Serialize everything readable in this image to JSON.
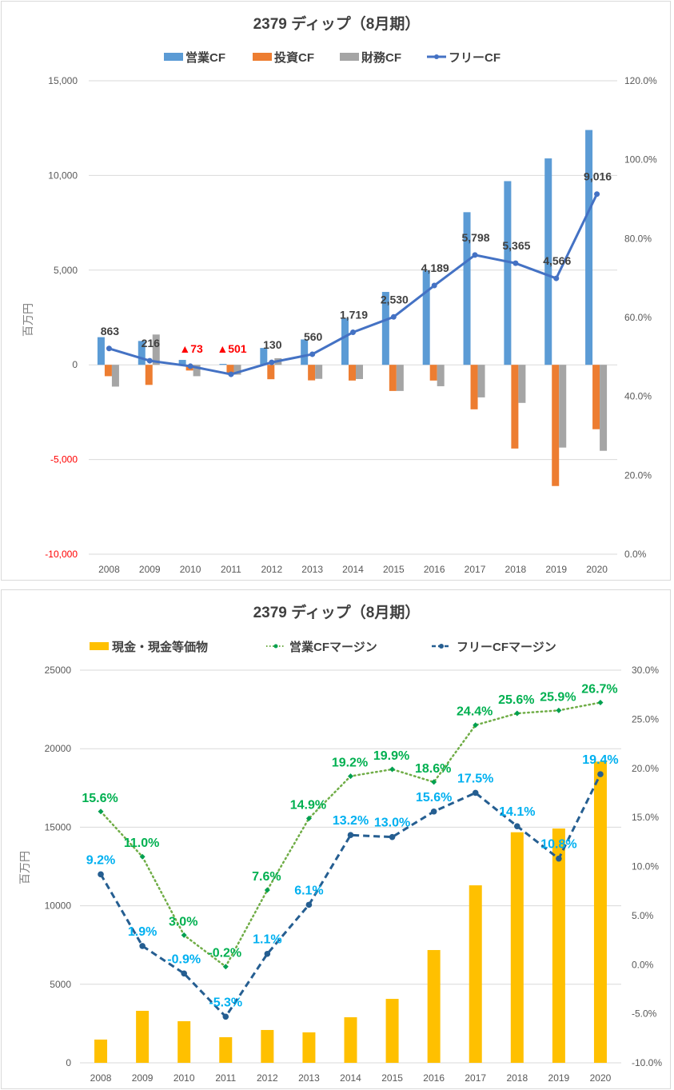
{
  "chart_data": [
    {
      "type": "bar+line",
      "title": "2379 ディップ（8月期）",
      "categories": [
        "2008",
        "2009",
        "2010",
        "2011",
        "2012",
        "2013",
        "2014",
        "2015",
        "2016",
        "2017",
        "2018",
        "2019",
        "2020"
      ],
      "ylabel": "百万円",
      "ylim": [
        -10000,
        15000
      ],
      "yticks": [
        15000,
        10000,
        5000,
        0,
        -5000,
        -10000
      ],
      "ytick_labels": [
        "15,000",
        "10,000",
        "5,000",
        "0",
        "-5,000",
        "-10,000"
      ],
      "y2lim": [
        0,
        120
      ],
      "y2ticks": [
        120,
        100,
        80,
        60,
        40,
        20,
        0
      ],
      "y2tick_labels": [
        "120.0%",
        "100.0%",
        "80.0%",
        "60.0%",
        "40.0%",
        "20.0%",
        "0.0%"
      ],
      "grid": true,
      "legend_position": "top",
      "series": [
        {
          "name": "営業CF",
          "kind": "bar",
          "color": "#5B9BD5",
          "values": [
            1460,
            1260,
            260,
            50,
            890,
            1340,
            2450,
            3850,
            4980,
            8060,
            9700,
            10900,
            12400
          ]
        },
        {
          "name": "投資CF",
          "kind": "bar",
          "color": "#ED7D31",
          "values": [
            -600,
            -1060,
            -300,
            -500,
            -760,
            -820,
            -830,
            -1380,
            -830,
            -2350,
            -4420,
            -6400,
            -3400
          ]
        },
        {
          "name": "財務CF",
          "kind": "bar",
          "color": "#A5A5A5",
          "values": [
            -1150,
            1600,
            -600,
            -520,
            350,
            -740,
            -750,
            -1380,
            -1130,
            -1720,
            -2010,
            -4370,
            -4540
          ]
        },
        {
          "name": "フリーCF",
          "kind": "line",
          "color": "#4472C4",
          "values": [
            863,
            216,
            -73,
            -501,
            130,
            560,
            1719,
            2530,
            4189,
            5798,
            5365,
            4566,
            9016
          ],
          "data_labels": [
            "863",
            "216",
            "▲73",
            "▲501",
            "130",
            "560",
            "1,719",
            "2,530",
            "4,189",
            "5,798",
            "5,365",
            "4,566",
            "9,016"
          ]
        }
      ]
    },
    {
      "type": "bar+line",
      "title": "2379 ディップ（8月期）",
      "categories": [
        "2008",
        "2009",
        "2010",
        "2011",
        "2012",
        "2013",
        "2014",
        "2015",
        "2016",
        "2017",
        "2018",
        "2019",
        "2020"
      ],
      "ylabel": "百万円",
      "ylim": [
        0,
        25000
      ],
      "yticks": [
        25000,
        20000,
        15000,
        10000,
        5000,
        0
      ],
      "ytick_labels": [
        "25000",
        "20000",
        "15000",
        "10000",
        "5000",
        "0"
      ],
      "y2lim": [
        -10,
        30
      ],
      "y2ticks": [
        30,
        25,
        20,
        15,
        10,
        5,
        0,
        -5,
        -10
      ],
      "y2tick_labels": [
        "30.0%",
        "25.0%",
        "20.0%",
        "15.0%",
        "10.0%",
        "5.0%",
        "0.0%",
        "-5.0%",
        "-10.0%"
      ],
      "grid": true,
      "legend_position": "top",
      "series": [
        {
          "name": "現金・現金等価物",
          "kind": "bar",
          "color": "#FFC000",
          "values": [
            1480,
            3310,
            2650,
            1630,
            2090,
            1940,
            2900,
            4070,
            7180,
            11300,
            14680,
            14920,
            19180
          ]
        },
        {
          "name": "営業CFマージン",
          "kind": "line",
          "style": "dotted",
          "color": "#70AD47",
          "label_color": "#00B050",
          "axis": "secondary",
          "values": [
            15.6,
            11.0,
            3.0,
            -0.2,
            7.6,
            14.9,
            19.2,
            19.9,
            18.6,
            24.4,
            25.6,
            25.9,
            26.7
          ],
          "data_labels": [
            "15.6%",
            "11.0%",
            "3.0%",
            "-0.2%",
            "7.6%",
            "14.9%",
            "19.2%",
            "19.9%",
            "18.6%",
            "24.4%",
            "25.6%",
            "25.9%",
            "26.7%"
          ]
        },
        {
          "name": "フリーCFマージン",
          "kind": "line",
          "style": "dashed",
          "color": "#255E91",
          "label_color": "#00B0F0",
          "axis": "secondary",
          "values": [
            9.2,
            1.9,
            -0.9,
            -5.3,
            1.1,
            6.1,
            13.2,
            13.0,
            15.6,
            17.5,
            14.1,
            10.8,
            19.4
          ],
          "data_labels": [
            "9.2%",
            "1.9%",
            "-0.9%",
            "-5.3%",
            "1.1%",
            "6.1%",
            "13.2%",
            "13.0%",
            "15.6%",
            "17.5%",
            "14.1%",
            "10.8%",
            "19.4%"
          ]
        }
      ]
    }
  ]
}
